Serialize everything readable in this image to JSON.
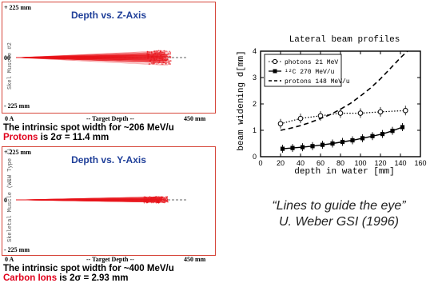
{
  "panel_top": {
    "title": "Depth vs. Z-Axis",
    "ytop": "+ 225 mm",
    "ymid": "00",
    "ybot": "- 225 mm",
    "ylabel": "Skel Muscle #2",
    "xleft": "0 A",
    "xmid": "-- Target Depth --",
    "xright": "450 mm",
    "caption_line1": "The intrinsic spot width for ~206 MeV/u",
    "caption_hl": "Protons",
    "caption_rest": " is  2σ = 11.4 mm"
  },
  "panel_bottom": {
    "title": "Depth vs. Y-Axis",
    "ytop": "+ 225 mm",
    "ymid": "0",
    "ybot": "- 225 mm",
    "ylabel": "Skeletal Muscle (W&W Type 1)",
    "xleft": "0 A",
    "xmid": "-- Target Depth --",
    "xright": "450 mm",
    "caption_line1": "The intrinsic spot width for ~400 MeV/u",
    "caption_hl": "Carbon Ions",
    "caption_rest": " is  2σ = 2.93 mm"
  },
  "quote": {
    "line1": "“Lines to guide the eye”",
    "line2": "U. Weber GSI (1996)"
  },
  "colors": {
    "beam": "#e8141b",
    "highlight": "#e0001b",
    "title_blue": "#1f3f99",
    "frame": "#d6463a"
  },
  "chart_data": {
    "type": "line",
    "title": "Lateral beam profiles",
    "xlabel": "depth in water [mm]",
    "ylabel": "beam widening d[mm]",
    "xlim": [
      0,
      160
    ],
    "ylim": [
      0,
      4
    ],
    "xticks": [
      0,
      20,
      40,
      60,
      80,
      100,
      120,
      140,
      160
    ],
    "yticks": [
      0,
      1,
      2,
      3,
      4
    ],
    "legend_position": "top-left",
    "series": [
      {
        "name": "photons 21 MeV",
        "style": "dotted-open-circle",
        "x": [
          20,
          40,
          60,
          80,
          100,
          120,
          145
        ],
        "y": [
          1.25,
          1.45,
          1.55,
          1.65,
          1.65,
          1.7,
          1.75
        ]
      },
      {
        "name": "¹²C 270 MeV/u",
        "style": "solid-filled-square",
        "x": [
          22,
          32,
          42,
          52,
          62,
          72,
          82,
          92,
          102,
          112,
          122,
          132,
          142
        ],
        "y": [
          0.3,
          0.33,
          0.36,
          0.4,
          0.45,
          0.5,
          0.56,
          0.62,
          0.7,
          0.78,
          0.86,
          0.98,
          1.12
        ]
      },
      {
        "name": "protons 148 MeV/u",
        "style": "dashed",
        "x": [
          20,
          30,
          40,
          50,
          60,
          70,
          80,
          90,
          100,
          110,
          120,
          130,
          140,
          147
        ],
        "y": [
          1.0,
          1.08,
          1.18,
          1.3,
          1.45,
          1.6,
          1.8,
          2.02,
          2.3,
          2.6,
          2.95,
          3.35,
          3.75,
          4.0
        ]
      }
    ]
  }
}
